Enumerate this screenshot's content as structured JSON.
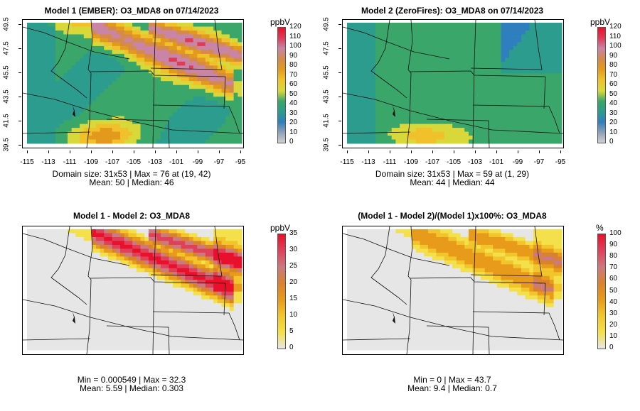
{
  "panels": [
    {
      "title": "Model 1 (EMBER): O3_MDA8 on 07/14/2023",
      "stats_line1": "Domain size: 31x53 | Max = 76 at (19, 42)",
      "stats_line2": "Mean: 50 |  Median: 46",
      "unit": "ppbV",
      "scale_labels": [
        "120",
        "110",
        "100",
        "90",
        "80",
        "70",
        "60",
        "50",
        "40",
        "30",
        "20",
        "10",
        "0"
      ],
      "x_ticks": [
        "-115",
        "-113",
        "-111",
        "-109",
        "-107",
        "-105",
        "-103",
        "-101",
        "-99",
        "-97",
        "-95"
      ],
      "y_ticks": [
        "49.5",
        "47.5",
        "45.5",
        "43.5",
        "41.5",
        "39.5"
      ]
    },
    {
      "title": "Model 2 (ZeroFires): O3_MDA8 on 07/14/2023",
      "stats_line1": "Domain size: 31x53 | Max = 59 at (1, 29)",
      "stats_line2": "Mean: 44 |  Median: 44",
      "unit": "ppbV",
      "scale_labels": [
        "120",
        "110",
        "100",
        "90",
        "80",
        "70",
        "60",
        "50",
        "40",
        "30",
        "20",
        "10",
        "0"
      ],
      "x_ticks": [
        "-115",
        "-113",
        "-111",
        "-109",
        "-107",
        "-105",
        "-103",
        "-101",
        "-99",
        "-97",
        "-95"
      ],
      "y_ticks": [
        "49.5",
        "47.5",
        "45.5",
        "43.5",
        "41.5",
        "39.5"
      ]
    },
    {
      "title": "Model 1 - Model 2: O3_MDA8",
      "stats_line1": "Min = 0.000549 | Max = 32.3",
      "stats_line2": "Mean: 5.59 |  Median: 0.303",
      "unit": "ppbV",
      "scale_labels": [
        "35",
        "30",
        "25",
        "20",
        "15",
        "10",
        "5",
        "0"
      ]
    },
    {
      "title": "(Model 1 - Model 2)/(Model 1)x100%: O3_MDA8",
      "stats_line1": "Min = 0 | Max = 43.7",
      "stats_line2": "Mean: 9.4 |  Median: 0.7",
      "unit": "%",
      "scale_labels": [
        "100",
        "90",
        "80",
        "70",
        "60",
        "50",
        "40",
        "30",
        "20",
        "10",
        "0"
      ]
    }
  ],
  "colors": {
    "absolute_scale": [
      "#d0d0d0",
      "#8ea0b8",
      "#2f7fbf",
      "#2c9c8e",
      "#3aa66a",
      "#d9d83b",
      "#f0c12a",
      "#e39a1c",
      "#d48a4e",
      "#c984a6",
      "#e03a55",
      "#e8102a"
    ],
    "diff_scale": [
      "#e6e6e6",
      "#f4e04a",
      "#f2c52c",
      "#e89a1a",
      "#d9822e",
      "#cc7a7f",
      "#e0405a",
      "#e8102a"
    ]
  }
}
